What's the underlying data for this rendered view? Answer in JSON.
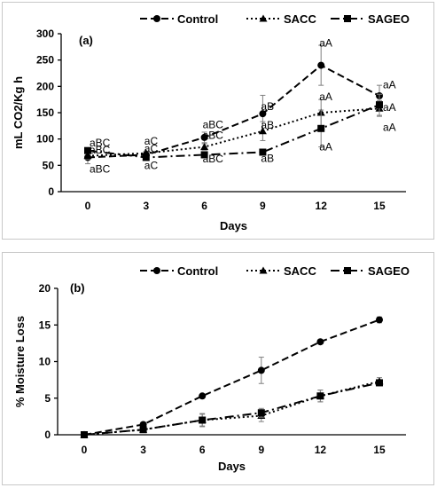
{
  "chart_data": [
    {
      "type": "line",
      "panel": "(a)",
      "title": "",
      "xlabel": "Days",
      "ylabel": "mL CO2/Kg h",
      "x": [
        0,
        3,
        6,
        9,
        12,
        15
      ],
      "xticks": [
        "0",
        "3",
        "6",
        "9",
        "12",
        "15"
      ],
      "ylim": [
        0,
        300
      ],
      "yticks": [
        "0",
        "50",
        "100",
        "150",
        "200",
        "250",
        "300"
      ],
      "ytick_values": [
        0,
        50,
        100,
        150,
        200,
        250,
        300
      ],
      "legend_position": "top",
      "grid": false,
      "series": [
        {
          "name": "Control",
          "values": [
            65,
            70,
            103,
            148,
            240,
            182
          ],
          "errors": [
            12,
            6,
            10,
            35,
            38,
            20
          ],
          "marker": "circle",
          "dash": "8,4"
        },
        {
          "name": "SACC",
          "values": [
            68,
            73,
            85,
            115,
            150,
            158
          ],
          "errors": [
            6,
            4,
            6,
            18,
            25,
            15
          ],
          "marker": "triangle",
          "dash": "2,3"
        },
        {
          "name": "SAGEO",
          "values": [
            78,
            65,
            70,
            75,
            120,
            165
          ],
          "errors": [
            5,
            4,
            4,
            5,
            35,
            20
          ],
          "marker": "square",
          "dash": "10,4,2,4"
        }
      ],
      "annotations": [
        {
          "text": "aBC",
          "x": 0,
          "y": 93
        },
        {
          "text": "aBC",
          "x": 0,
          "y": 79
        },
        {
          "text": "aBC",
          "x": 0,
          "y": 43
        },
        {
          "text": "aC",
          "x": 3,
          "y": 96
        },
        {
          "text": "aC",
          "x": 3,
          "y": 82
        },
        {
          "text": "aC",
          "x": 3,
          "y": 50
        },
        {
          "text": "aBC",
          "x": 6,
          "y": 127
        },
        {
          "text": "aBC",
          "x": 6,
          "y": 107
        },
        {
          "text": "aBC",
          "x": 6,
          "y": 62
        },
        {
          "text": "aB",
          "x": 9,
          "y": 162
        },
        {
          "text": "aB",
          "x": 9,
          "y": 126
        },
        {
          "text": "aB",
          "x": 9,
          "y": 63
        },
        {
          "text": "aA",
          "x": 12,
          "y": 282
        },
        {
          "text": "aA",
          "x": 12,
          "y": 180
        },
        {
          "text": "aA",
          "x": 12,
          "y": 85
        },
        {
          "text": "aA",
          "x": 15,
          "y": 203
        },
        {
          "text": "aA",
          "x": 15,
          "y": 160
        },
        {
          "text": "aA",
          "x": 15,
          "y": 122
        }
      ]
    },
    {
      "type": "line",
      "panel": "(b)",
      "title": "",
      "xlabel": "Days",
      "ylabel": "% Moisture Loss",
      "x": [
        0,
        3,
        6,
        9,
        12,
        15
      ],
      "xticks": [
        "0",
        "3",
        "6",
        "9",
        "12",
        "15"
      ],
      "ylim": [
        0,
        20
      ],
      "yticks": [
        "0",
        "5",
        "10",
        "15",
        "20"
      ],
      "ytick_values": [
        0,
        5,
        10,
        15,
        20
      ],
      "legend_position": "top",
      "grid": false,
      "series": [
        {
          "name": "Control",
          "values": [
            0,
            1.4,
            5.3,
            8.8,
            12.7,
            15.7
          ],
          "errors": [
            0,
            0.1,
            0.2,
            1.8,
            0.2,
            0.4
          ],
          "marker": "circle",
          "dash": "8,4"
        },
        {
          "name": "SACC",
          "values": [
            0,
            0.7,
            2.0,
            2.6,
            5.3,
            7.3
          ],
          "errors": [
            0,
            0.1,
            0.8,
            0.8,
            0.8,
            0.5
          ],
          "marker": "triangle",
          "dash": "2,3"
        },
        {
          "name": "SAGEO",
          "values": [
            0,
            0.7,
            2.0,
            3.0,
            5.3,
            7.1
          ],
          "errors": [
            0,
            0.1,
            0.9,
            0.6,
            0.8,
            0.4
          ],
          "marker": "square",
          "dash": "10,4,2,4"
        }
      ],
      "annotations": []
    }
  ]
}
